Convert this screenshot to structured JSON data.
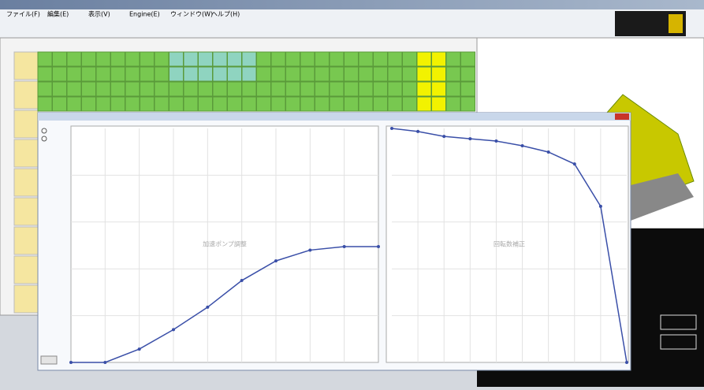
{
  "window": {
    "menu": [
      "ファイル(F)",
      "編集(E)",
      "表示(V)",
      "Engine(E)",
      "ウィンドウ(W)",
      "ヘルプ(H)"
    ]
  },
  "popup": {
    "charts": [
      {
        "type": "line",
        "title": "加速ポンプ調整",
        "values": [
          0,
          0,
          5.7,
          14,
          23.6,
          35,
          43.4,
          48,
          49.5,
          49.5
        ],
        "ylim": [
          0,
          100
        ],
        "color": "#3a4fa8"
      },
      {
        "type": "line",
        "title": "回転数補正",
        "values": [
          100,
          98.7,
          96.6,
          95.6,
          94.6,
          92.6,
          89.9,
          84.8,
          66.7,
          0
        ],
        "ylim": [
          0,
          100
        ],
        "color": "#3a4fa8"
      }
    ]
  }
}
